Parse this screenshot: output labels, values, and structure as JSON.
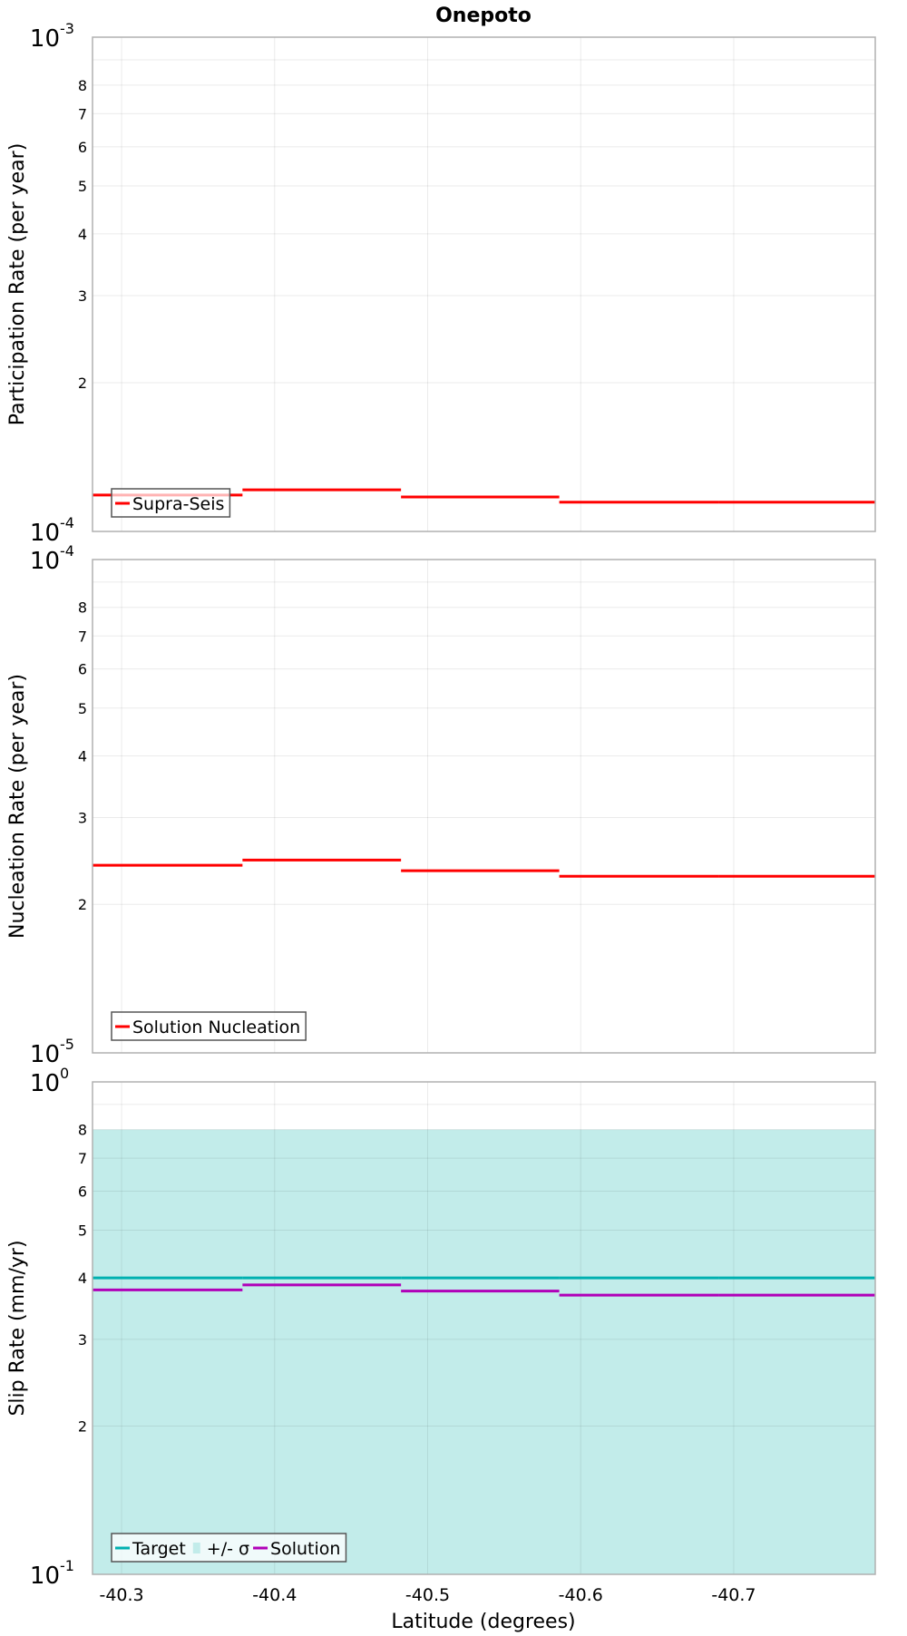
{
  "chart_data": [
    {
      "type": "line",
      "step": true,
      "title": "Onepoto",
      "xlabel": "Latitude (degrees)",
      "ylabel": "Participation Rate (per year)",
      "yscale": "log",
      "ylim": [
        0.0001,
        0.001
      ],
      "xlim": [
        -40.281,
        -40.7925
      ],
      "x_ticks": [
        -40.3,
        -40.4,
        -40.5,
        -40.6,
        -40.7
      ],
      "x_tick_labels": [
        "-40.3",
        "-40.4",
        "-40.5",
        "-40.6",
        "-40.7"
      ],
      "y_major_labels": [
        {
          "base": "10",
          "exp": "-4"
        },
        {
          "base": "10",
          "exp": "-3"
        }
      ],
      "y_minor_labels": [
        "2",
        "3",
        "4",
        "5",
        "6",
        "7",
        "8"
      ],
      "x_edges": [
        -40.281,
        -40.379,
        -40.4826,
        -40.586,
        -40.69,
        -40.7925
      ],
      "series": [
        {
          "name": "Supra-Seis",
          "color": "#ff0000",
          "values": [
            0.0001185,
            0.0001214,
            0.0001174,
            0.0001146,
            0.0001146
          ]
        }
      ],
      "legend": "bottom-left",
      "grid": true
    },
    {
      "type": "line",
      "step": true,
      "ylabel": "Nucleation Rate (per year)",
      "yscale": "log",
      "ylim": [
        1e-05,
        0.0001
      ],
      "y_major_labels": [
        {
          "base": "10",
          "exp": "-5"
        },
        {
          "base": "10",
          "exp": "-4"
        }
      ],
      "y_minor_labels": [
        "2",
        "3",
        "4",
        "5",
        "6",
        "7",
        "8"
      ],
      "x_edges": [
        -40.281,
        -40.379,
        -40.4826,
        -40.586,
        -40.69,
        -40.7925
      ],
      "series": [
        {
          "name": "Solution Nucleation",
          "color": "#ff0000",
          "values": [
            2.4e-05,
            2.46e-05,
            2.34e-05,
            2.28e-05,
            2.28e-05
          ]
        }
      ],
      "legend": "bottom-left",
      "grid": true
    },
    {
      "type": "line",
      "step": true,
      "ylabel": "Slip Rate (mm/yr)",
      "yscale": "log",
      "ylim": [
        0.1,
        1
      ],
      "y_major_labels": [
        {
          "base": "10",
          "exp": "-1"
        },
        {
          "base": "10",
          "exp": "0"
        }
      ],
      "y_minor_labels": [
        "2",
        "3",
        "4",
        "5",
        "6",
        "7",
        "8"
      ],
      "x_edges": [
        -40.281,
        -40.379,
        -40.4826,
        -40.586,
        -40.69,
        -40.7925
      ],
      "band": {
        "name": "+/- σ",
        "color": "#c2ecea",
        "low": 0.0,
        "high": 0.8
      },
      "series": [
        {
          "name": "Target",
          "color": "#00b0b0",
          "values": [
            0.4,
            0.4,
            0.4,
            0.4,
            0.4
          ]
        },
        {
          "name": "Solution",
          "color": "#b000b8",
          "values": [
            0.378,
            0.387,
            0.376,
            0.369,
            0.369
          ]
        }
      ],
      "legend_order": [
        "Target",
        "+/- σ",
        "Solution"
      ],
      "legend": "bottom-left",
      "grid": true
    }
  ]
}
